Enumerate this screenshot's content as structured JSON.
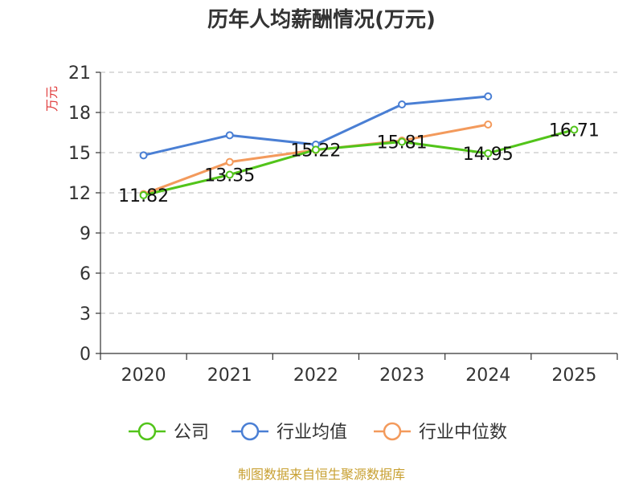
{
  "chart_data": {
    "type": "line",
    "title": "历年人均薪酬情况(万元)",
    "ylabel": "万元",
    "xlabel": "",
    "categories": [
      "2020",
      "2021",
      "2022",
      "2023",
      "2024",
      "2025"
    ],
    "ylim": [
      0,
      21
    ],
    "yticks": [
      0,
      3,
      6,
      9,
      12,
      15,
      18,
      21
    ],
    "grid": true,
    "legend_position": "bottom",
    "series": [
      {
        "name": "公司",
        "color": "#52c41a",
        "values": [
          11.82,
          13.35,
          15.22,
          15.81,
          14.95,
          16.71
        ],
        "labels": [
          "11.82",
          "13.35",
          "15.22",
          "15.81",
          "14.95",
          "16.71"
        ]
      },
      {
        "name": "行业均值",
        "color": "#4a7fd4",
        "values": [
          14.8,
          16.3,
          15.6,
          18.6,
          19.2,
          null
        ]
      },
      {
        "name": "行业中位数",
        "color": "#f39a5c",
        "values": [
          11.9,
          14.3,
          15.2,
          15.9,
          17.1,
          null
        ]
      }
    ],
    "source": "制图数据来自恒生聚源数据库"
  }
}
